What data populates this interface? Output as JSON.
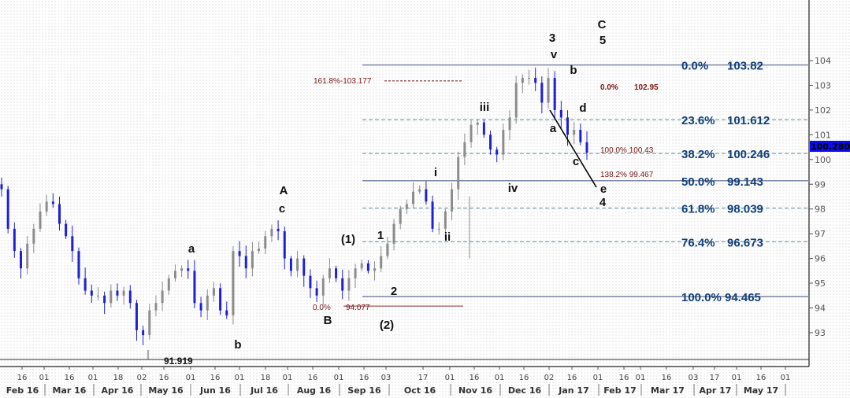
{
  "chart_data": {
    "type": "candlestick",
    "title": "",
    "xlabel": "",
    "ylabel": "",
    "ylim": [
      92.3,
      104.8
    ],
    "grid": false,
    "x_range": [
      "2016-02-02",
      "2017-01-24"
    ],
    "closes": [
      98.8,
      97.2,
      96.3,
      95.6,
      96.6,
      97.2,
      97.9,
      98.3,
      98.2,
      97.4,
      96.9,
      96.3,
      95.2,
      94.7,
      94.5,
      94.5,
      94.2,
      94.7,
      94.5,
      94.7,
      94.2,
      93.1,
      92.9,
      93.9,
      94.2,
      94.7,
      95.2,
      95.5,
      95.6,
      95.5,
      94.2,
      93.9,
      94.5,
      94.8,
      93.9,
      93.7,
      96.3,
      96.1,
      95.6,
      96.3,
      96.4,
      96.9,
      97.2,
      97.1,
      96.0,
      95.5,
      96.0,
      95.3,
      94.8,
      94.5,
      95.2,
      95.6,
      95.2,
      94.7,
      95.2,
      95.6,
      95.8,
      95.5,
      95.6,
      96.1,
      96.6,
      97.4,
      98.0,
      98.2,
      98.7,
      98.8,
      98.3,
      97.2,
      97.2,
      97.9,
      98.8,
      100.1,
      100.7,
      101.4,
      101.5,
      101.0,
      100.4,
      100.2,
      101.2,
      101.7,
      103.1,
      103.3,
      103.3,
      103.1,
      102.3,
      103.3,
      102.0,
      101.7,
      101.0,
      101.2,
      100.7,
      100.28
    ],
    "colors": {
      "down": "#1f1fd6",
      "up": "#8c8c8c"
    },
    "y_ticks": [
      "93",
      "94",
      "95",
      "96",
      "97",
      "98",
      "99",
      "100",
      "101",
      "102",
      "103",
      "104"
    ],
    "day_ticks": [
      "16",
      "01",
      "16",
      "01",
      "18",
      "02",
      "16",
      "01",
      "16",
      "01",
      "18",
      "01",
      "16",
      "01",
      "16",
      "03",
      "17",
      "01",
      "16",
      "01",
      "16",
      "02",
      "16",
      "01",
      "16",
      "01",
      "16",
      "03",
      "17",
      "01",
      "16",
      "01"
    ],
    "month_labels": [
      "Feb 16",
      "Mar 16",
      "Apr 16",
      "May 16",
      "Jun 16",
      "Jul 16",
      "Aug 16",
      "Sep 16",
      "Oct 16",
      "Nov 16",
      "Dec 16",
      "Jan 17",
      "Feb 17",
      "Mar 17",
      "Apr 17",
      "May 17"
    ],
    "last_price": {
      "value": 100.28,
      "label": "100.280",
      "color": "#0b0bf0"
    },
    "fib_levels": [
      {
        "pct": "0.0%",
        "value": "103.82",
        "price": 103.82,
        "style": "solid"
      },
      {
        "pct": "23.6%",
        "value": "101.612",
        "price": 101.612,
        "style": "dashed"
      },
      {
        "pct": "38.2%",
        "value": "100.246",
        "price": 100.246,
        "style": "dashed"
      },
      {
        "pct": "50.0%",
        "value": "99.143",
        "price": 99.143,
        "style": "solid"
      },
      {
        "pct": "61.8%",
        "value": "98.039",
        "price": 98.039,
        "style": "dashed"
      },
      {
        "pct": "76.4%",
        "value": "96.673",
        "price": 96.673,
        "style": "dashed"
      },
      {
        "pct": "100.0%",
        "value": "94.465",
        "price": 94.465,
        "style": "solid"
      }
    ],
    "extension_labels": [
      {
        "text": "161.8%-103.177",
        "price": 103.177
      },
      {
        "text": "0.0%",
        "price": 94.077
      },
      {
        "text": "94.077",
        "price": 94.077
      },
      {
        "text": "0.0%",
        "price": 102.95
      },
      {
        "text": "102.95",
        "price": 102.95
      },
      {
        "text": "100.0% 100.43",
        "price": 100.43
      },
      {
        "text": "138.2% 99.467",
        "price": 99.467
      }
    ],
    "low_label": {
      "text": "91.919",
      "price": 91.919
    },
    "wave_labels": [
      "3",
      "v",
      "C",
      "5",
      "b",
      "d",
      "a",
      "c",
      "e",
      "4",
      "iii",
      "iv",
      "i",
      "ii",
      "A",
      "c",
      "a",
      "b",
      "(1)",
      "1",
      "2",
      "B",
      "(2)"
    ]
  }
}
